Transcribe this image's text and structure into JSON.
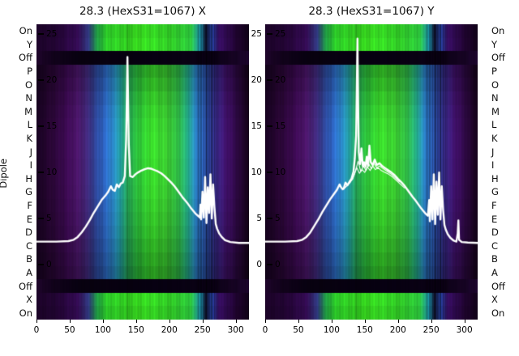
{
  "figure": {
    "bg": "#ffffff",
    "ylabel": "Dipole"
  },
  "plots": [
    {
      "title": "28.3 (HexS31=1067) X"
    },
    {
      "title": "28.3 (HexS31=1067) Y"
    }
  ],
  "row_labels": [
    "On",
    "Y",
    "Off",
    "P",
    "O",
    "N",
    "M",
    "L",
    "K",
    "J",
    "I",
    "H",
    "G",
    "F",
    "E",
    "D",
    "C",
    "B",
    "A",
    "Off",
    "X",
    "On"
  ],
  "inner_yticks": [
    "25",
    "20",
    "15",
    "10",
    "5",
    "0"
  ],
  "gap_yticks": [
    "25",
    "20",
    "15",
    "10",
    "5",
    "0"
  ],
  "xtick_labels": [
    "0",
    "50",
    "100",
    "150",
    "200",
    "250",
    "300"
  ],
  "line_color": "#ffffff",
  "chart_data": [
    {
      "type": "heatmap",
      "title": "28.3 (HexS31=1067) X",
      "ylabel": "Dipole",
      "x_range": [
        0,
        320
      ],
      "xticks": [
        0,
        50,
        100,
        150,
        200,
        250,
        300
      ],
      "value_ticks": [
        25,
        20,
        15,
        10,
        5,
        0
      ],
      "rows": [
        "On",
        "Y",
        "Off",
        "P",
        "O",
        "N",
        "M",
        "L",
        "K",
        "J",
        "I",
        "H",
        "G",
        "F",
        "E",
        "D",
        "C",
        "B",
        "A",
        "Off",
        "X",
        "On"
      ],
      "line_series": [
        {
          "color": "#ffffff",
          "width": 2.4,
          "points": [
            [
              0,
              2.5
            ],
            [
              30,
              2.5
            ],
            [
              48,
              2.55
            ],
            [
              56,
              2.7
            ],
            [
              62,
              3.0
            ],
            [
              68,
              3.5
            ],
            [
              74,
              4.1
            ],
            [
              80,
              4.8
            ],
            [
              86,
              5.6
            ],
            [
              92,
              6.3
            ],
            [
              98,
              7.0
            ],
            [
              104,
              7.5
            ],
            [
              108,
              7.9
            ],
            [
              112,
              8.5
            ],
            [
              115,
              8.1
            ],
            [
              118,
              8.0
            ],
            [
              121,
              8.7
            ],
            [
              124,
              8.4
            ],
            [
              127,
              8.8
            ],
            [
              130,
              8.9
            ],
            [
              133,
              9.6
            ],
            [
              135,
              13.5
            ],
            [
              137,
              22.5
            ],
            [
              139,
              13.0
            ],
            [
              141,
              9.6
            ],
            [
              145,
              9.5
            ],
            [
              149,
              9.8
            ],
            [
              153,
              10.0
            ],
            [
              158,
              10.2
            ],
            [
              163,
              10.35
            ],
            [
              168,
              10.45
            ],
            [
              173,
              10.4
            ],
            [
              178,
              10.25
            ],
            [
              183,
              10.1
            ],
            [
              188,
              9.9
            ],
            [
              193,
              9.6
            ],
            [
              198,
              9.25
            ],
            [
              203,
              8.9
            ],
            [
              208,
              8.5
            ],
            [
              212,
              8.1
            ],
            [
              216,
              7.7
            ],
            [
              220,
              7.3
            ],
            [
              224,
              6.95
            ],
            [
              228,
              6.6
            ],
            [
              232,
              6.2
            ],
            [
              236,
              5.85
            ],
            [
              240,
              5.5
            ],
            [
              244,
              5.25
            ],
            [
              246,
              5.1
            ],
            [
              247,
              6.5
            ],
            [
              248,
              4.9
            ],
            [
              250,
              7.9
            ],
            [
              252,
              5.1
            ],
            [
              254,
              9.5
            ],
            [
              256,
              4.5
            ],
            [
              258,
              8.4
            ],
            [
              260,
              5.6
            ],
            [
              262,
              9.8
            ],
            [
              264,
              5.0
            ],
            [
              266,
              8.7
            ],
            [
              268,
              6.2
            ],
            [
              270,
              4.4
            ],
            [
              272,
              3.9
            ],
            [
              275,
              3.4
            ],
            [
              279,
              3.0
            ],
            [
              284,
              2.65
            ],
            [
              292,
              2.45
            ],
            [
              305,
              2.35
            ],
            [
              320,
              2.35
            ]
          ]
        }
      ]
    },
    {
      "type": "heatmap",
      "title": "28.3 (HexS31=1067) Y",
      "x_range": [
        0,
        320
      ],
      "xticks": [
        0,
        50,
        100,
        150,
        200,
        250,
        300
      ],
      "value_ticks": [
        25,
        20,
        15,
        10,
        5,
        0
      ],
      "rows": [
        "On",
        "Y",
        "Off",
        "P",
        "O",
        "N",
        "M",
        "L",
        "K",
        "J",
        "I",
        "H",
        "G",
        "F",
        "E",
        "D",
        "C",
        "B",
        "A",
        "Off",
        "X",
        "On"
      ],
      "line_series": [
        {
          "color": "#ffffff",
          "width": 2.4,
          "points": [
            [
              0,
              2.5
            ],
            [
              30,
              2.5
            ],
            [
              48,
              2.55
            ],
            [
              56,
              2.7
            ],
            [
              62,
              3.0
            ],
            [
              68,
              3.5
            ],
            [
              74,
              4.2
            ],
            [
              80,
              4.9
            ],
            [
              86,
              5.7
            ],
            [
              92,
              6.4
            ],
            [
              98,
              7.1
            ],
            [
              104,
              7.7
            ],
            [
              108,
              8.1
            ],
            [
              112,
              8.7
            ],
            [
              115,
              8.3
            ],
            [
              118,
              8.2
            ],
            [
              121,
              8.9
            ],
            [
              124,
              8.6
            ],
            [
              127,
              9.0
            ],
            [
              130,
              9.3
            ],
            [
              133,
              10.1
            ],
            [
              135,
              11.5
            ],
            [
              137,
              14.0
            ],
            [
              139,
              24.5
            ],
            [
              140,
              17.5
            ],
            [
              141,
              12.2
            ],
            [
              143,
              10.9
            ],
            [
              145,
              12.6
            ],
            [
              147,
              10.7
            ],
            [
              149,
              11.1
            ],
            [
              151,
              10.6
            ],
            [
              153,
              11.7
            ],
            [
              155,
              10.7
            ],
            [
              157,
              12.9
            ],
            [
              159,
              11.1
            ],
            [
              162,
              10.8
            ],
            [
              165,
              11.4
            ],
            [
              168,
              10.8
            ],
            [
              172,
              11.0
            ],
            [
              176,
              10.7
            ],
            [
              180,
              10.5
            ],
            [
              185,
              10.25
            ],
            [
              190,
              10.0
            ],
            [
              195,
              9.7
            ],
            [
              200,
              9.3
            ],
            [
              205,
              8.95
            ],
            [
              210,
              8.55
            ],
            [
              214,
              8.15
            ],
            [
              218,
              7.75
            ],
            [
              222,
              7.35
            ],
            [
              226,
              7.0
            ],
            [
              230,
              6.6
            ],
            [
              234,
              6.2
            ],
            [
              238,
              5.85
            ],
            [
              242,
              5.5
            ],
            [
              245,
              5.3
            ],
            [
              247,
              7.0
            ],
            [
              248,
              4.7
            ],
            [
              250,
              8.5
            ],
            [
              252,
              4.9
            ],
            [
              254,
              9.8
            ],
            [
              256,
              4.4
            ],
            [
              258,
              9.0
            ],
            [
              260,
              5.4
            ],
            [
              262,
              10.0
            ],
            [
              264,
              4.9
            ],
            [
              266,
              8.5
            ],
            [
              268,
              5.9
            ],
            [
              270,
              4.3
            ],
            [
              272,
              3.8
            ],
            [
              275,
              3.3
            ],
            [
              279,
              2.9
            ],
            [
              284,
              2.6
            ],
            [
              288,
              2.5
            ],
            [
              290,
              3.4
            ],
            [
              291,
              4.8
            ],
            [
              292,
              2.7
            ],
            [
              296,
              2.45
            ],
            [
              305,
              2.4
            ],
            [
              320,
              2.35
            ]
          ]
        },
        {
          "color": "#ffffff",
          "width": 1.1,
          "points": [
            [
              116,
              8.1
            ],
            [
              122,
              8.5
            ],
            [
              128,
              8.9
            ],
            [
              134,
              9.7
            ],
            [
              138,
              10.5
            ],
            [
              142,
              9.9
            ],
            [
              146,
              10.3
            ],
            [
              150,
              10.0
            ],
            [
              154,
              10.6
            ],
            [
              158,
              10.2
            ],
            [
              162,
              10.7
            ],
            [
              166,
              10.3
            ],
            [
              170,
              10.5
            ],
            [
              175,
              10.2
            ],
            [
              180,
              10.0
            ],
            [
              186,
              9.8
            ],
            [
              192,
              9.5
            ],
            [
              198,
              9.1
            ],
            [
              204,
              8.7
            ],
            [
              210,
              8.3
            ]
          ]
        },
        {
          "color": "#ffffff",
          "width": 1.1,
          "points": [
            [
              120,
              8.3
            ],
            [
              126,
              8.8
            ],
            [
              132,
              9.3
            ],
            [
              136,
              10.2
            ],
            [
              140,
              11.2
            ],
            [
              144,
              10.1
            ],
            [
              148,
              10.7
            ],
            [
              152,
              10.2
            ],
            [
              156,
              10.9
            ],
            [
              160,
              10.4
            ],
            [
              164,
              11.0
            ],
            [
              168,
              10.5
            ],
            [
              172,
              10.7
            ],
            [
              178,
              10.4
            ],
            [
              184,
              10.1
            ],
            [
              190,
              9.8
            ],
            [
              196,
              9.4
            ],
            [
              202,
              9.0
            ]
          ]
        }
      ]
    }
  ],
  "heatmap_style": {
    "colormaps": {
      "body": [
        [
          0,
          "#16021f"
        ],
        [
          20,
          "#2a0636"
        ],
        [
          45,
          "#3c0a52"
        ],
        [
          62,
          "#4a1668"
        ],
        [
          76,
          "#432b80"
        ],
        [
          90,
          "#2f4da4"
        ],
        [
          102,
          "#2e66c4"
        ],
        [
          115,
          "#2a86c4"
        ],
        [
          126,
          "#23a0a0"
        ],
        [
          136,
          "#28b05e"
        ],
        [
          152,
          "#2ec43a"
        ],
        [
          172,
          "#38d42a"
        ],
        [
          196,
          "#3cd032"
        ],
        [
          214,
          "#30be4a"
        ],
        [
          228,
          "#23a88a"
        ],
        [
          240,
          "#2b7ec8"
        ],
        [
          256,
          "#2f52b2"
        ],
        [
          270,
          "#3b2a8c"
        ],
        [
          285,
          "#3f1068"
        ],
        [
          302,
          "#2c0840"
        ],
        [
          320,
          "#150218"
        ]
      ],
      "outer": [
        [
          0,
          "#1c0328"
        ],
        [
          35,
          "#26053a"
        ],
        [
          62,
          "#330b52"
        ],
        [
          78,
          "#323c86"
        ],
        [
          90,
          "#21a048"
        ],
        [
          105,
          "#2cc828"
        ],
        [
          150,
          "#38dc20"
        ],
        [
          200,
          "#34d628"
        ],
        [
          232,
          "#2cc43c"
        ],
        [
          246,
          "#1e9cb4"
        ],
        [
          254,
          "#101430"
        ],
        [
          264,
          "#2a48b0"
        ],
        [
          274,
          "#380e64"
        ],
        [
          300,
          "#200330"
        ],
        [
          320,
          "#12021a"
        ]
      ],
      "dark": [
        [
          0,
          "#1c0428"
        ],
        [
          25,
          "#12021c"
        ],
        [
          60,
          "#080110"
        ],
        [
          160,
          "#060010"
        ],
        [
          260,
          "#0a0114"
        ],
        [
          295,
          "#140320"
        ],
        [
          320,
          "#1e0530"
        ]
      ]
    },
    "rows": [
      {
        "cmap": "outer",
        "f": 0.95
      },
      {
        "cmap": "outer",
        "f": 1.0
      },
      {
        "cmap": "dark",
        "f": 1.0
      },
      {
        "cmap": "body",
        "f": 0.74
      },
      {
        "cmap": "body",
        "f": 0.82
      },
      {
        "cmap": "body",
        "f": 0.9
      },
      {
        "cmap": "body",
        "f": 0.96
      },
      {
        "cmap": "body",
        "f": 1.0
      },
      {
        "cmap": "body",
        "f": 1.02
      },
      {
        "cmap": "body",
        "f": 1.02
      },
      {
        "cmap": "body",
        "f": 1.0
      },
      {
        "cmap": "body",
        "f": 1.0
      },
      {
        "cmap": "body",
        "f": 0.98
      },
      {
        "cmap": "body",
        "f": 0.94
      },
      {
        "cmap": "body",
        "f": 0.9
      },
      {
        "cmap": "body",
        "f": 0.86
      },
      {
        "cmap": "body",
        "f": 0.8
      },
      {
        "cmap": "body",
        "f": 0.74
      },
      {
        "cmap": "body",
        "f": 0.68
      },
      {
        "cmap": "dark",
        "f": 1.0
      },
      {
        "cmap": "outer",
        "f": 0.98
      },
      {
        "cmap": "outer",
        "f": 0.92
      }
    ],
    "stripes": [
      [
        137,
        1.5,
        0.3
      ],
      [
        244,
        2,
        0.22
      ],
      [
        248,
        1.5,
        0.4
      ],
      [
        252,
        1.5,
        0.22
      ],
      [
        256,
        2,
        0.45
      ],
      [
        260,
        1.5,
        0.28
      ],
      [
        264,
        2,
        0.5
      ],
      [
        268,
        1.5,
        0.32
      ],
      [
        272,
        1.2,
        0.26
      ]
    ]
  }
}
